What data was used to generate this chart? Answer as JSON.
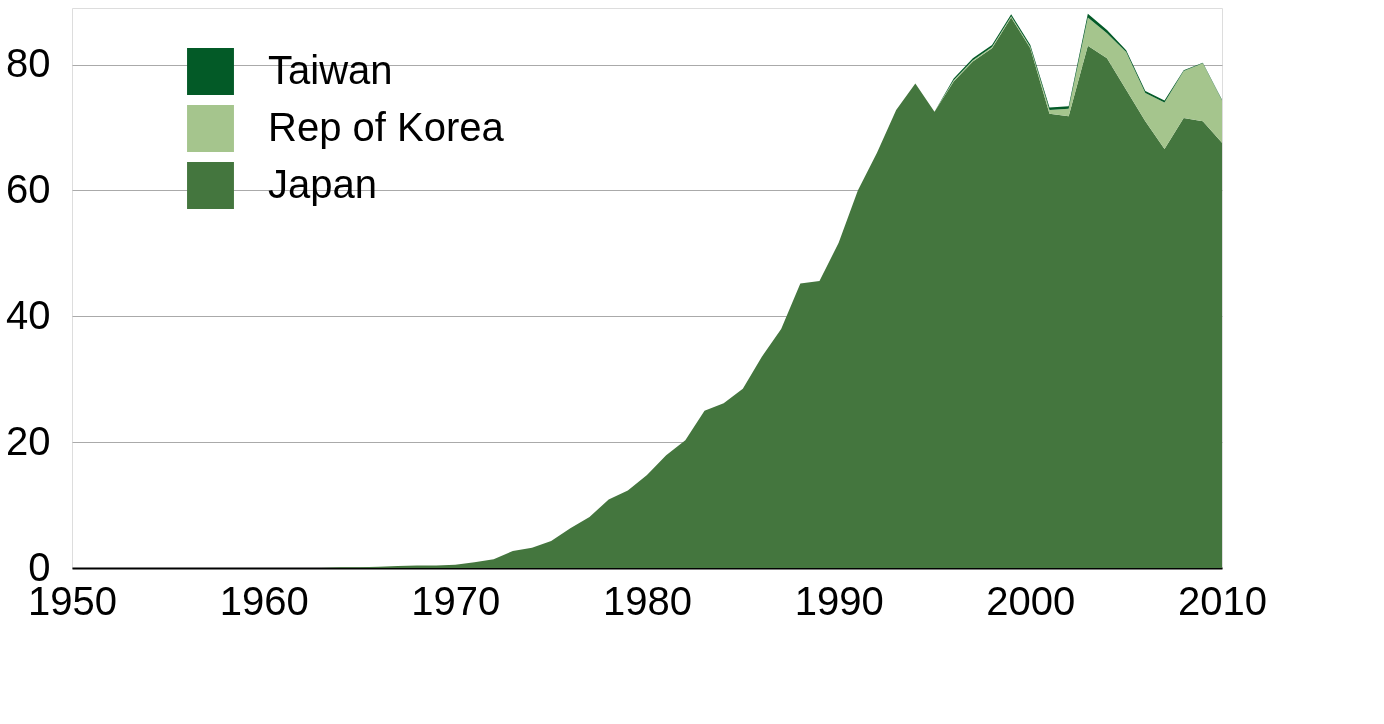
{
  "chart_data": {
    "type": "area",
    "stacked": true,
    "x": [
      1950,
      1951,
      1952,
      1953,
      1954,
      1955,
      1956,
      1957,
      1958,
      1959,
      1960,
      1961,
      1962,
      1963,
      1964,
      1965,
      1966,
      1967,
      1968,
      1969,
      1970,
      1971,
      1972,
      1973,
      1974,
      1975,
      1976,
      1977,
      1978,
      1979,
      1980,
      1981,
      1982,
      1983,
      1984,
      1985,
      1986,
      1987,
      1988,
      1989,
      1990,
      1991,
      1992,
      1993,
      1994,
      1995,
      1996,
      1997,
      1998,
      1999,
      2000,
      2001,
      2002,
      2003,
      2004,
      2005,
      2006,
      2007,
      2008,
      2009,
      2010
    ],
    "series": [
      {
        "name": "Japan",
        "color": "#44763e",
        "values": [
          0,
          0,
          0,
          0,
          0,
          0,
          0,
          0,
          0,
          0,
          0,
          0,
          0,
          0,
          0.1,
          0.1,
          0.2,
          0.3,
          0.4,
          0.4,
          0.5,
          0.9,
          1.4,
          2.7,
          3.2,
          4.3,
          6.3,
          8.1,
          10.9,
          12.3,
          14.8,
          17.9,
          20.3,
          25,
          26.2,
          28.5,
          33.6,
          38,
          45.2,
          45.6,
          51.7,
          60,
          66,
          72.8,
          77,
          72.5,
          77.3,
          80.5,
          82.6,
          87.5,
          82.6,
          72.2,
          71.8,
          83,
          81,
          76,
          71,
          66.6,
          71.5,
          71,
          67.6
        ]
      },
      {
        "name": "Rep of Korea",
        "color": "#a5c58d",
        "values": [
          0,
          0,
          0,
          0,
          0,
          0,
          0,
          0,
          0,
          0,
          0,
          0,
          0,
          0,
          0,
          0,
          0,
          0,
          0,
          0,
          0,
          0,
          0,
          0,
          0,
          0,
          0,
          0,
          0,
          0,
          0,
          0,
          0,
          0,
          0,
          0,
          0,
          0,
          0,
          0,
          0,
          0,
          0,
          0,
          0,
          0,
          0.2,
          0.2,
          0.2,
          0.2,
          0.2,
          0.6,
          1.2,
          4.5,
          4,
          6,
          4.5,
          7.4,
          7.5,
          9.2,
          6.7
        ]
      },
      {
        "name": "Taiwan",
        "color": "#035a27",
        "values": [
          0,
          0,
          0,
          0,
          0,
          0,
          0,
          0,
          0,
          0,
          0,
          0,
          0,
          0,
          0,
          0,
          0,
          0,
          0,
          0,
          0,
          0,
          0,
          0,
          0,
          0,
          0,
          0,
          0,
          0,
          0,
          0,
          0,
          0,
          0,
          0,
          0,
          0,
          0,
          0,
          0,
          0,
          0,
          0,
          0,
          0,
          0.3,
          0.3,
          0.3,
          0.3,
          0.3,
          0.4,
          0.4,
          0.6,
          0.5,
          0.3,
          0.3,
          0.3,
          0.1,
          0.1,
          0.1
        ]
      }
    ],
    "xlim": [
      1950,
      2010
    ],
    "xticks": [
      1950,
      1960,
      1970,
      1980,
      1990,
      2000,
      2010
    ],
    "ylim": [
      0,
      89
    ],
    "yticks": [
      0,
      20,
      40,
      60,
      80
    ],
    "grid": "y",
    "legend": "top left"
  }
}
